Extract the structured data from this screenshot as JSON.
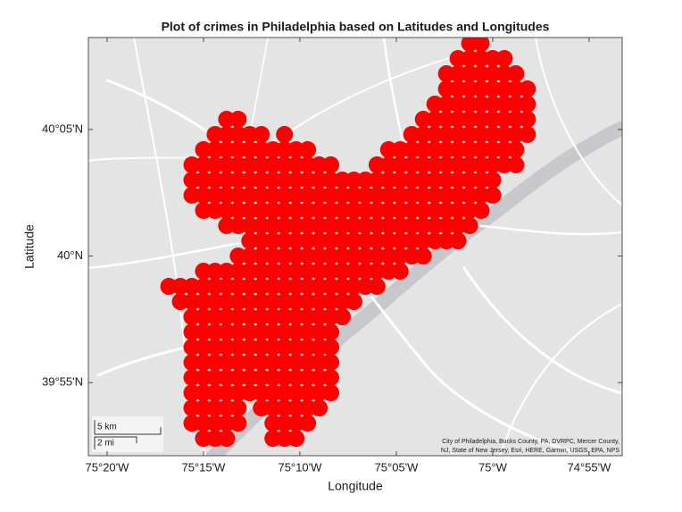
{
  "chart_data": {
    "type": "scatter",
    "title": "Plot of crimes in Philadelphia based on Latitudes and Longitudes",
    "x_label": "Longitude",
    "y_label": "Latitude",
    "color": "#ff0000",
    "xlim": [
      -75.3495,
      -74.8881
    ],
    "ylim": [
      39.8686,
      40.1438
    ],
    "xticks": [
      {
        "value": -75.3333,
        "label": "75°20'W"
      },
      {
        "value": -75.25,
        "label": "75°15'W"
      },
      {
        "value": -75.1667,
        "label": "75°10'W"
      },
      {
        "value": -75.0833,
        "label": "75°05'W"
      },
      {
        "value": -75.0,
        "label": "75°W"
      },
      {
        "value": -74.9167,
        "label": "74°55'W"
      }
    ],
    "yticks": [
      {
        "value": 39.9167,
        "label": "39°55'N"
      },
      {
        "value": 40.0,
        "label": "40°N"
      },
      {
        "value": 40.0833,
        "label": "40°05'N"
      }
    ],
    "annotations": [
      "5 km",
      "2 mi",
      "City of Philadelphia, Bucks County, PA, DVRPC, Mercer County,",
      "NJ, State of New Jersey, Esri, HERE, Garmin, USGS, EPA, NPS"
    ],
    "x": [
      -75.02,
      -75.01,
      -75.03,
      -75.02,
      -75.01,
      -75,
      -74.99,
      -75.04,
      -75.03,
      -75.02,
      -75.01,
      -75,
      -74.99,
      -74.98,
      -75.04,
      -75.03,
      -75.02,
      -75.01,
      -75,
      -74.99,
      -74.98,
      -74.97,
      -75.05,
      -75.04,
      -75.03,
      -75.02,
      -75.01,
      -75,
      -74.99,
      -74.98,
      -74.97,
      -75.23,
      -75.22,
      -75.06,
      -75.05,
      -75.04,
      -75.03,
      -75.02,
      -75.01,
      -75,
      -74.99,
      -74.98,
      -74.97,
      -75.24,
      -75.23,
      -75.22,
      -75.21,
      -75.2,
      -75.18,
      -75.07,
      -75.06,
      -75.05,
      -75.04,
      -75.03,
      -75.02,
      -75.01,
      -75,
      -74.99,
      -74.98,
      -74.97,
      -75.25,
      -75.24,
      -75.23,
      -75.22,
      -75.21,
      -75.2,
      -75.19,
      -75.18,
      -75.17,
      -75.16,
      -75.09,
      -75.08,
      -75.07,
      -75.06,
      -75.05,
      -75.04,
      -75.03,
      -75.02,
      -75.01,
      -75,
      -74.99,
      -74.98,
      -75.26,
      -75.25,
      -75.24,
      -75.23,
      -75.22,
      -75.21,
      -75.2,
      -75.19,
      -75.18,
      -75.17,
      -75.16,
      -75.15,
      -75.14,
      -75.1,
      -75.09,
      -75.08,
      -75.07,
      -75.06,
      -75.05,
      -75.04,
      -75.03,
      -75.02,
      -75.01,
      -75,
      -74.99,
      -74.98,
      -75.26,
      -75.25,
      -75.24,
      -75.23,
      -75.22,
      -75.21,
      -75.2,
      -75.19,
      -75.18,
      -75.17,
      -75.16,
      -75.15,
      -75.14,
      -75.13,
      -75.12,
      -75.11,
      -75.1,
      -75.09,
      -75.08,
      -75.07,
      -75.06,
      -75.05,
      -75.04,
      -75.03,
      -75.02,
      -75.01,
      -75,
      -75.26,
      -75.25,
      -75.24,
      -75.23,
      -75.22,
      -75.21,
      -75.2,
      -75.19,
      -75.18,
      -75.17,
      -75.16,
      -75.15,
      -75.14,
      -75.13,
      -75.12,
      -75.11,
      -75.1,
      -75.09,
      -75.08,
      -75.07,
      -75.06,
      -75.05,
      -75.04,
      -75.03,
      -75.02,
      -75.01,
      -75,
      -75.25,
      -75.24,
      -75.23,
      -75.22,
      -75.21,
      -75.2,
      -75.19,
      -75.18,
      -75.17,
      -75.16,
      -75.15,
      -75.14,
      -75.13,
      -75.12,
      -75.11,
      -75.1,
      -75.09,
      -75.08,
      -75.07,
      -75.06,
      -75.05,
      -75.04,
      -75.03,
      -75.02,
      -75.01,
      -75.23,
      -75.22,
      -75.21,
      -75.2,
      -75.19,
      -75.18,
      -75.17,
      -75.16,
      -75.15,
      -75.14,
      -75.13,
      -75.12,
      -75.11,
      -75.1,
      -75.09,
      -75.08,
      -75.07,
      -75.06,
      -75.05,
      -75.04,
      -75.03,
      -75.02,
      -75.21,
      -75.2,
      -75.19,
      -75.18,
      -75.17,
      -75.16,
      -75.15,
      -75.14,
      -75.13,
      -75.12,
      -75.11,
      -75.1,
      -75.09,
      -75.08,
      -75.07,
      -75.06,
      -75.05,
      -75.04,
      -75.03,
      -75.22,
      -75.21,
      -75.2,
      -75.19,
      -75.18,
      -75.17,
      -75.16,
      -75.15,
      -75.14,
      -75.13,
      -75.12,
      -75.11,
      -75.1,
      -75.09,
      -75.08,
      -75.07,
      -75.06,
      -75.25,
      -75.24,
      -75.23,
      -75.22,
      -75.21,
      -75.2,
      -75.19,
      -75.18,
      -75.17,
      -75.16,
      -75.15,
      -75.14,
      -75.13,
      -75.12,
      -75.11,
      -75.1,
      -75.09,
      -75.08,
      -75.28,
      -75.27,
      -75.26,
      -75.25,
      -75.24,
      -75.23,
      -75.22,
      -75.21,
      -75.2,
      -75.19,
      -75.18,
      -75.17,
      -75.16,
      -75.15,
      -75.14,
      -75.13,
      -75.12,
      -75.11,
      -75.1,
      -75.27,
      -75.26,
      -75.25,
      -75.24,
      -75.23,
      -75.22,
      -75.21,
      -75.2,
      -75.19,
      -75.18,
      -75.17,
      -75.16,
      -75.15,
      -75.14,
      -75.13,
      -75.12,
      -75.26,
      -75.25,
      -75.24,
      -75.23,
      -75.22,
      -75.21,
      -75.2,
      -75.19,
      -75.18,
      -75.17,
      -75.16,
      -75.15,
      -75.14,
      -75.13,
      -75.26,
      -75.25,
      -75.24,
      -75.23,
      -75.22,
      -75.21,
      -75.2,
      -75.19,
      -75.18,
      -75.17,
      -75.16,
      -75.15,
      -75.14,
      -75.26,
      -75.25,
      -75.24,
      -75.23,
      -75.22,
      -75.21,
      -75.2,
      -75.19,
      -75.18,
      -75.17,
      -75.16,
      -75.15,
      -75.14,
      -75.26,
      -75.25,
      -75.24,
      -75.23,
      -75.22,
      -75.21,
      -75.2,
      -75.19,
      -75.18,
      -75.17,
      -75.16,
      -75.15,
      -75.14,
      -75.26,
      -75.25,
      -75.24,
      -75.23,
      -75.22,
      -75.21,
      -75.2,
      -75.19,
      -75.18,
      -75.17,
      -75.16,
      -75.15,
      -75.14,
      -75.26,
      -75.25,
      -75.24,
      -75.23,
      -75.22,
      -75.21,
      -75.2,
      -75.19,
      -75.18,
      -75.17,
      -75.16,
      -75.15,
      -75.14,
      -75.26,
      -75.25,
      -75.24,
      -75.23,
      -75.22,
      -75.2,
      -75.19,
      -75.18,
      -75.17,
      -75.16,
      -75.15,
      -75.26,
      -75.25,
      -75.24,
      -75.23,
      -75.22,
      -75.19,
      -75.18,
      -75.17,
      -75.16,
      -75.25,
      -75.24,
      -75.23,
      -75.19,
      -75.18,
      -75.17
    ],
    "values": [
      40.14,
      40.14,
      40.13,
      40.13,
      40.13,
      40.13,
      40.13,
      40.12,
      40.12,
      40.12,
      40.12,
      40.12,
      40.12,
      40.12,
      40.11,
      40.11,
      40.11,
      40.11,
      40.11,
      40.11,
      40.11,
      40.11,
      40.1,
      40.1,
      40.1,
      40.1,
      40.1,
      40.1,
      40.1,
      40.1,
      40.1,
      40.09,
      40.09,
      40.09,
      40.09,
      40.09,
      40.09,
      40.09,
      40.09,
      40.09,
      40.09,
      40.09,
      40.09,
      40.08,
      40.08,
      40.08,
      40.08,
      40.08,
      40.08,
      40.08,
      40.08,
      40.08,
      40.08,
      40.08,
      40.08,
      40.08,
      40.08,
      40.08,
      40.08,
      40.08,
      40.07,
      40.07,
      40.07,
      40.07,
      40.07,
      40.07,
      40.07,
      40.07,
      40.07,
      40.07,
      40.07,
      40.07,
      40.07,
      40.07,
      40.07,
      40.07,
      40.07,
      40.07,
      40.07,
      40.07,
      40.07,
      40.07,
      40.06,
      40.06,
      40.06,
      40.06,
      40.06,
      40.06,
      40.06,
      40.06,
      40.06,
      40.06,
      40.06,
      40.06,
      40.06,
      40.06,
      40.06,
      40.06,
      40.06,
      40.06,
      40.06,
      40.06,
      40.06,
      40.06,
      40.06,
      40.06,
      40.06,
      40.06,
      40.05,
      40.05,
      40.05,
      40.05,
      40.05,
      40.05,
      40.05,
      40.05,
      40.05,
      40.05,
      40.05,
      40.05,
      40.05,
      40.05,
      40.05,
      40.05,
      40.05,
      40.05,
      40.05,
      40.05,
      40.05,
      40.05,
      40.05,
      40.05,
      40.05,
      40.05,
      40.05,
      40.04,
      40.04,
      40.04,
      40.04,
      40.04,
      40.04,
      40.04,
      40.04,
      40.04,
      40.04,
      40.04,
      40.04,
      40.04,
      40.04,
      40.04,
      40.04,
      40.04,
      40.04,
      40.04,
      40.04,
      40.04,
      40.04,
      40.04,
      40.04,
      40.04,
      40.04,
      40.04,
      40.03,
      40.03,
      40.03,
      40.03,
      40.03,
      40.03,
      40.03,
      40.03,
      40.03,
      40.03,
      40.03,
      40.03,
      40.03,
      40.03,
      40.03,
      40.03,
      40.03,
      40.03,
      40.03,
      40.03,
      40.03,
      40.03,
      40.03,
      40.03,
      40.03,
      40.02,
      40.02,
      40.02,
      40.02,
      40.02,
      40.02,
      40.02,
      40.02,
      40.02,
      40.02,
      40.02,
      40.02,
      40.02,
      40.02,
      40.02,
      40.02,
      40.02,
      40.02,
      40.02,
      40.02,
      40.02,
      40.02,
      40.01,
      40.01,
      40.01,
      40.01,
      40.01,
      40.01,
      40.01,
      40.01,
      40.01,
      40.01,
      40.01,
      40.01,
      40.01,
      40.01,
      40.01,
      40.01,
      40.01,
      40.01,
      40.01,
      40,
      40,
      40,
      40,
      40,
      40,
      40,
      40,
      40,
      40,
      40,
      40,
      40,
      40,
      40,
      40,
      40,
      39.99,
      39.99,
      39.99,
      39.99,
      39.99,
      39.99,
      39.99,
      39.99,
      39.99,
      39.99,
      39.99,
      39.99,
      39.99,
      39.99,
      39.99,
      39.99,
      39.99,
      39.99,
      39.98,
      39.98,
      39.98,
      39.98,
      39.98,
      39.98,
      39.98,
      39.98,
      39.98,
      39.98,
      39.98,
      39.98,
      39.98,
      39.98,
      39.98,
      39.98,
      39.98,
      39.98,
      39.98,
      39.97,
      39.97,
      39.97,
      39.97,
      39.97,
      39.97,
      39.97,
      39.97,
      39.97,
      39.97,
      39.97,
      39.97,
      39.97,
      39.97,
      39.97,
      39.97,
      39.96,
      39.96,
      39.96,
      39.96,
      39.96,
      39.96,
      39.96,
      39.96,
      39.96,
      39.96,
      39.96,
      39.96,
      39.96,
      39.96,
      39.95,
      39.95,
      39.95,
      39.95,
      39.95,
      39.95,
      39.95,
      39.95,
      39.95,
      39.95,
      39.95,
      39.95,
      39.95,
      39.94,
      39.94,
      39.94,
      39.94,
      39.94,
      39.94,
      39.94,
      39.94,
      39.94,
      39.94,
      39.94,
      39.94,
      39.94,
      39.93,
      39.93,
      39.93,
      39.93,
      39.93,
      39.93,
      39.93,
      39.93,
      39.93,
      39.93,
      39.93,
      39.93,
      39.93,
      39.92,
      39.92,
      39.92,
      39.92,
      39.92,
      39.92,
      39.92,
      39.92,
      39.92,
      39.92,
      39.92,
      39.92,
      39.92,
      39.91,
      39.91,
      39.91,
      39.91,
      39.91,
      39.91,
      39.91,
      39.91,
      39.91,
      39.91,
      39.91,
      39.91,
      39.91,
      39.9,
      39.9,
      39.9,
      39.9,
      39.9,
      39.9,
      39.9,
      39.9,
      39.9,
      39.9,
      39.9,
      39.89,
      39.89,
      39.89,
      39.89,
      39.89,
      39.89,
      39.89,
      39.89,
      39.89,
      39.88,
      39.88,
      39.88,
      39.88,
      39.88,
      39.88
    ]
  }
}
